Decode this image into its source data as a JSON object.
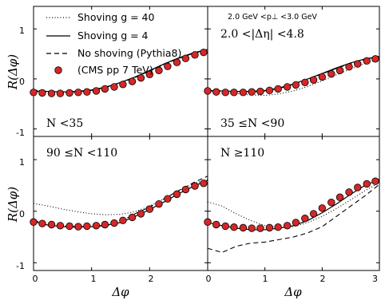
{
  "chart_data": {
    "type": "line",
    "y_axis_label": "R(Δφ)",
    "x_axis_label": "Δφ",
    "xlim": [
      0,
      3.0
    ],
    "ylim": [
      -1.15,
      1.45
    ],
    "x_ticks": [
      "0",
      "1",
      "2",
      "3"
    ],
    "y_ticks": [
      "1",
      "0",
      "-1"
    ],
    "grid": false,
    "legend_placement": "top-left",
    "legend": [
      {
        "key": "g40",
        "label": "Shoving g = 40",
        "style": "dotted"
      },
      {
        "key": "g4",
        "label": "Shoving g = 4",
        "style": "solid"
      },
      {
        "key": "noshove",
        "label": "No shoving (Pythia8)",
        "style": "dashed"
      },
      {
        "key": "cms",
        "label": "(CMS pp 7 TeV)",
        "style": "marker"
      }
    ],
    "colors": {
      "lines": "#000000",
      "marker_fill": "#d62728",
      "marker_edge": "#000000"
    },
    "annotations": {
      "pt_cut": "2.0 GeV <p⊥ <3.0 GeV",
      "eta_cut": "2.0 <|Δη| <4.8"
    },
    "panels": [
      {
        "label": "N <35",
        "label_position": "bottom-left",
        "x": [
          0,
          0.25,
          0.5,
          0.75,
          1.0,
          1.25,
          1.5,
          1.75,
          2.0,
          2.25,
          2.5,
          2.75,
          3.0
        ],
        "series": {
          "g40": [
            -0.22,
            -0.25,
            -0.26,
            -0.25,
            -0.22,
            -0.17,
            -0.08,
            0.03,
            0.16,
            0.29,
            0.41,
            0.51,
            0.59
          ],
          "g4": [
            -0.24,
            -0.25,
            -0.26,
            -0.25,
            -0.22,
            -0.16,
            -0.07,
            0.04,
            0.17,
            0.3,
            0.42,
            0.52,
            0.59
          ],
          "noshove": [
            -0.25,
            -0.26,
            -0.27,
            -0.26,
            -0.23,
            -0.17,
            -0.08,
            0.03,
            0.16,
            0.29,
            0.41,
            0.51,
            0.58
          ]
        },
        "cms": {
          "x": [
            0.0,
            0.15,
            0.31,
            0.46,
            0.62,
            0.77,
            0.92,
            1.08,
            1.23,
            1.39,
            1.54,
            1.7,
            1.85,
            2.0,
            2.16,
            2.31,
            2.47,
            2.62,
            2.78,
            2.93
          ],
          "y": [
            -0.27,
            -0.28,
            -0.29,
            -0.29,
            -0.28,
            -0.27,
            -0.26,
            -0.24,
            -0.2,
            -0.16,
            -0.11,
            -0.05,
            0.02,
            0.09,
            0.17,
            0.25,
            0.33,
            0.41,
            0.48,
            0.53
          ]
        }
      },
      {
        "label": "35 ≤N <90",
        "label_position": "bottom-left",
        "x": [
          0,
          0.25,
          0.5,
          0.75,
          1.0,
          1.25,
          1.5,
          1.75,
          2.0,
          2.25,
          2.5,
          2.75,
          3.0
        ],
        "series": {
          "g40": [
            -0.25,
            -0.27,
            -0.29,
            -0.32,
            -0.33,
            -0.3,
            -0.24,
            -0.15,
            -0.04,
            0.08,
            0.2,
            0.31,
            0.4
          ],
          "g4": [
            -0.23,
            -0.24,
            -0.25,
            -0.25,
            -0.23,
            -0.18,
            -0.1,
            0.0,
            0.11,
            0.22,
            0.32,
            0.4,
            0.45
          ],
          "noshove": [
            -0.24,
            -0.25,
            -0.26,
            -0.26,
            -0.24,
            -0.19,
            -0.11,
            -0.01,
            0.1,
            0.21,
            0.31,
            0.39,
            0.45
          ]
        },
        "cms": {
          "x": [
            0.0,
            0.15,
            0.31,
            0.46,
            0.62,
            0.77,
            0.92,
            1.08,
            1.23,
            1.39,
            1.54,
            1.7,
            1.85,
            2.0,
            2.16,
            2.31,
            2.47,
            2.62,
            2.78,
            2.93
          ],
          "y": [
            -0.24,
            -0.26,
            -0.27,
            -0.27,
            -0.27,
            -0.26,
            -0.25,
            -0.23,
            -0.2,
            -0.16,
            -0.12,
            -0.07,
            -0.02,
            0.04,
            0.1,
            0.17,
            0.24,
            0.3,
            0.36,
            0.4
          ]
        }
      },
      {
        "label": "90 ≤N <110",
        "label_position": "top-left",
        "x": [
          0,
          0.25,
          0.5,
          0.75,
          1.0,
          1.25,
          1.5,
          1.75,
          2.0,
          2.25,
          2.5,
          2.75,
          3.0
        ],
        "series": {
          "g40": [
            0.15,
            0.1,
            0.04,
            -0.01,
            -0.05,
            -0.07,
            -0.06,
            -0.01,
            0.1,
            0.24,
            0.39,
            0.53,
            0.62
          ],
          "g4": [
            -0.2,
            -0.27,
            -0.3,
            -0.31,
            -0.3,
            -0.27,
            -0.22,
            -0.1,
            0.03,
            0.18,
            0.34,
            0.48,
            0.6
          ],
          "noshove": [
            -0.18,
            -0.25,
            -0.29,
            -0.3,
            -0.3,
            -0.28,
            -0.2,
            -0.05,
            0.08,
            0.24,
            0.4,
            0.55,
            0.68
          ]
        },
        "cms": {
          "x": [
            0.0,
            0.15,
            0.31,
            0.46,
            0.62,
            0.77,
            0.92,
            1.08,
            1.23,
            1.39,
            1.54,
            1.7,
            1.85,
            2.0,
            2.16,
            2.31,
            2.47,
            2.62,
            2.78,
            2.93
          ],
          "y": [
            -0.21,
            -0.24,
            -0.26,
            -0.28,
            -0.29,
            -0.3,
            -0.29,
            -0.28,
            -0.26,
            -0.23,
            -0.18,
            -0.12,
            -0.05,
            0.04,
            0.14,
            0.24,
            0.33,
            0.42,
            0.49,
            0.54
          ]
        }
      },
      {
        "label": "N ≥110",
        "label_position": "top-left",
        "x": [
          0,
          0.25,
          0.5,
          0.75,
          1.0,
          1.25,
          1.5,
          1.75,
          2.0,
          2.25,
          2.5,
          2.75,
          3.0
        ],
        "series": {
          "g40": [
            0.18,
            0.1,
            -0.05,
            -0.18,
            -0.28,
            -0.32,
            -0.3,
            -0.22,
            -0.1,
            0.05,
            0.22,
            0.4,
            0.55
          ],
          "g4": [
            -0.22,
            -0.28,
            -0.33,
            -0.36,
            -0.36,
            -0.33,
            -0.28,
            -0.18,
            -0.03,
            0.14,
            0.33,
            0.5,
            0.62
          ],
          "noshove": [
            -0.72,
            -0.8,
            -0.68,
            -0.62,
            -0.6,
            -0.55,
            -0.5,
            -0.42,
            -0.3,
            -0.1,
            0.1,
            0.3,
            0.52
          ]
        },
        "cms": {
          "x": [
            0.0,
            0.15,
            0.31,
            0.46,
            0.62,
            0.77,
            0.92,
            1.08,
            1.23,
            1.39,
            1.54,
            1.7,
            1.85,
            2.0,
            2.16,
            2.31,
            2.47,
            2.62,
            2.78,
            2.93
          ],
          "y": [
            -0.21,
            -0.26,
            -0.29,
            -0.31,
            -0.32,
            -0.33,
            -0.33,
            -0.32,
            -0.31,
            -0.28,
            -0.22,
            -0.14,
            -0.05,
            0.06,
            0.17,
            0.27,
            0.37,
            0.46,
            0.53,
            0.58
          ]
        }
      }
    ]
  }
}
